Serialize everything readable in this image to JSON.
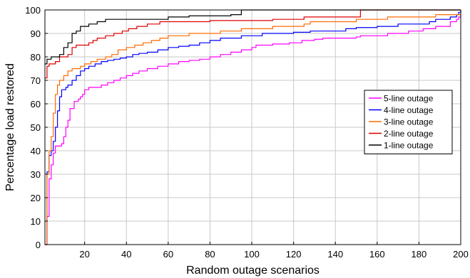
{
  "chart_data": {
    "type": "line",
    "title": "",
    "xlabel": "Random outage scenarios",
    "ylabel": "Percentage load restored",
    "xlim": [
      1,
      200
    ],
    "ylim": [
      0,
      100
    ],
    "xticks": [
      20,
      40,
      60,
      80,
      100,
      120,
      140,
      160,
      180,
      200
    ],
    "yticks": [
      0,
      10,
      20,
      30,
      40,
      50,
      60,
      70,
      80,
      90,
      100
    ],
    "grid": true,
    "legend_position": "right",
    "series": [
      {
        "name": "5-line outage",
        "color": "#ff00ff",
        "points": [
          [
            1,
            0
          ],
          [
            2,
            12
          ],
          [
            3,
            28
          ],
          [
            4,
            34
          ],
          [
            5,
            39
          ],
          [
            6,
            42
          ],
          [
            7,
            42
          ],
          [
            8,
            42
          ],
          [
            9,
            43
          ],
          [
            10,
            46
          ],
          [
            11,
            50
          ],
          [
            12,
            53
          ],
          [
            13,
            58
          ],
          [
            14,
            58
          ],
          [
            15,
            61
          ],
          [
            16,
            61
          ],
          [
            17,
            62
          ],
          [
            18,
            63
          ],
          [
            19,
            64
          ],
          [
            20,
            66
          ],
          [
            22,
            67
          ],
          [
            25,
            67
          ],
          [
            28,
            68
          ],
          [
            31,
            69
          ],
          [
            34,
            70
          ],
          [
            37,
            71
          ],
          [
            40,
            72
          ],
          [
            43,
            73
          ],
          [
            46,
            74
          ],
          [
            50,
            75
          ],
          [
            55,
            76
          ],
          [
            60,
            77
          ],
          [
            65,
            78
          ],
          [
            70,
            78.5
          ],
          [
            75,
            79
          ],
          [
            80,
            80
          ],
          [
            85,
            81
          ],
          [
            90,
            82
          ],
          [
            95,
            83
          ],
          [
            100,
            84
          ],
          [
            102,
            85
          ],
          [
            110,
            85.5
          ],
          [
            118,
            86
          ],
          [
            124,
            87
          ],
          [
            130,
            87.5
          ],
          [
            134,
            88
          ],
          [
            145,
            88
          ],
          [
            150,
            88.5
          ],
          [
            152,
            89
          ],
          [
            160,
            89
          ],
          [
            165,
            90
          ],
          [
            175,
            91
          ],
          [
            182,
            92
          ],
          [
            188,
            93
          ],
          [
            193,
            93
          ],
          [
            195,
            95
          ],
          [
            198,
            96
          ],
          [
            199,
            97
          ],
          [
            200,
            98
          ]
        ]
      },
      {
        "name": "4-line outage",
        "color": "#0000ff",
        "points": [
          [
            1,
            0
          ],
          [
            2,
            31
          ],
          [
            3,
            38
          ],
          [
            4,
            40
          ],
          [
            5,
            44
          ],
          [
            6,
            50
          ],
          [
            7,
            57
          ],
          [
            8,
            63
          ],
          [
            9,
            66
          ],
          [
            10,
            66
          ],
          [
            11,
            67
          ],
          [
            12,
            68
          ],
          [
            14,
            70
          ],
          [
            16,
            72
          ],
          [
            18,
            74
          ],
          [
            20,
            75
          ],
          [
            22,
            76
          ],
          [
            25,
            77
          ],
          [
            28,
            78
          ],
          [
            31,
            78.5
          ],
          [
            34,
            79
          ],
          [
            37,
            79.5
          ],
          [
            40,
            80
          ],
          [
            43,
            81
          ],
          [
            46,
            81.5
          ],
          [
            50,
            82
          ],
          [
            55,
            83
          ],
          [
            60,
            84
          ],
          [
            65,
            84.5
          ],
          [
            70,
            85
          ],
          [
            75,
            86
          ],
          [
            80,
            87
          ],
          [
            85,
            88
          ],
          [
            90,
            88
          ],
          [
            95,
            89
          ],
          [
            100,
            89
          ],
          [
            105,
            90
          ],
          [
            110,
            90
          ],
          [
            120,
            90.5
          ],
          [
            128,
            91
          ],
          [
            140,
            91
          ],
          [
            145,
            92
          ],
          [
            150,
            92.5
          ],
          [
            160,
            93
          ],
          [
            165,
            93
          ],
          [
            170,
            94
          ],
          [
            180,
            94
          ],
          [
            185,
            95
          ],
          [
            188,
            96
          ],
          [
            195,
            97
          ],
          [
            198,
            98
          ],
          [
            199,
            99
          ],
          [
            200,
            100
          ]
        ]
      },
      {
        "name": "3-line outage",
        "color": "#ff6a00",
        "points": [
          [
            1,
            0
          ],
          [
            2,
            30
          ],
          [
            3,
            40
          ],
          [
            4,
            46
          ],
          [
            5,
            56
          ],
          [
            6,
            64
          ],
          [
            7,
            68
          ],
          [
            8,
            70
          ],
          [
            10,
            72
          ],
          [
            12,
            74
          ],
          [
            14,
            75
          ],
          [
            16,
            75
          ],
          [
            18,
            76
          ],
          [
            20,
            77
          ],
          [
            23,
            78
          ],
          [
            26,
            79
          ],
          [
            30,
            80
          ],
          [
            33,
            81
          ],
          [
            36,
            83
          ],
          [
            40,
            84
          ],
          [
            44,
            85
          ],
          [
            48,
            86
          ],
          [
            52,
            87
          ],
          [
            56,
            88
          ],
          [
            60,
            89
          ],
          [
            65,
            89
          ],
          [
            70,
            90
          ],
          [
            75,
            90
          ],
          [
            80,
            90
          ],
          [
            85,
            91
          ],
          [
            90,
            91
          ],
          [
            95,
            92
          ],
          [
            100,
            92
          ],
          [
            110,
            93
          ],
          [
            120,
            93
          ],
          [
            125,
            94
          ],
          [
            128,
            95
          ],
          [
            140,
            95
          ],
          [
            150,
            96
          ],
          [
            155,
            96
          ],
          [
            160,
            96
          ],
          [
            165,
            97
          ],
          [
            175,
            97
          ],
          [
            185,
            97
          ],
          [
            188,
            98
          ],
          [
            195,
            98
          ],
          [
            200,
            99
          ]
        ]
      },
      {
        "name": "2-line outage",
        "color": "#dd0000",
        "points": [
          [
            1,
            71
          ],
          [
            2,
            76
          ],
          [
            3,
            77
          ],
          [
            6,
            78
          ],
          [
            8,
            80
          ],
          [
            12,
            81
          ],
          [
            14,
            84
          ],
          [
            16,
            85
          ],
          [
            20,
            85
          ],
          [
            22,
            86
          ],
          [
            24,
            87
          ],
          [
            26,
            88
          ],
          [
            30,
            89
          ],
          [
            34,
            90
          ],
          [
            38,
            91
          ],
          [
            41,
            92
          ],
          [
            45,
            93
          ],
          [
            50,
            94
          ],
          [
            56,
            95
          ],
          [
            70,
            95
          ],
          [
            80,
            95.5
          ],
          [
            100,
            95.5
          ],
          [
            110,
            96
          ],
          [
            120,
            96
          ],
          [
            125,
            97
          ],
          [
            140,
            97
          ],
          [
            150,
            97
          ],
          [
            152,
            100
          ],
          [
            200,
            100
          ]
        ]
      },
      {
        "name": "1-line outage",
        "color": "#000000",
        "points": [
          [
            1,
            77
          ],
          [
            2,
            79
          ],
          [
            4,
            80
          ],
          [
            6,
            80
          ],
          [
            8,
            81
          ],
          [
            10,
            84
          ],
          [
            12,
            86
          ],
          [
            14,
            90
          ],
          [
            16,
            91
          ],
          [
            18,
            93
          ],
          [
            22,
            94
          ],
          [
            26,
            95
          ],
          [
            30,
            96
          ],
          [
            40,
            96
          ],
          [
            50,
            96
          ],
          [
            60,
            97
          ],
          [
            70,
            97.5
          ],
          [
            90,
            98
          ],
          [
            95,
            100
          ],
          [
            200,
            100
          ]
        ]
      }
    ]
  }
}
